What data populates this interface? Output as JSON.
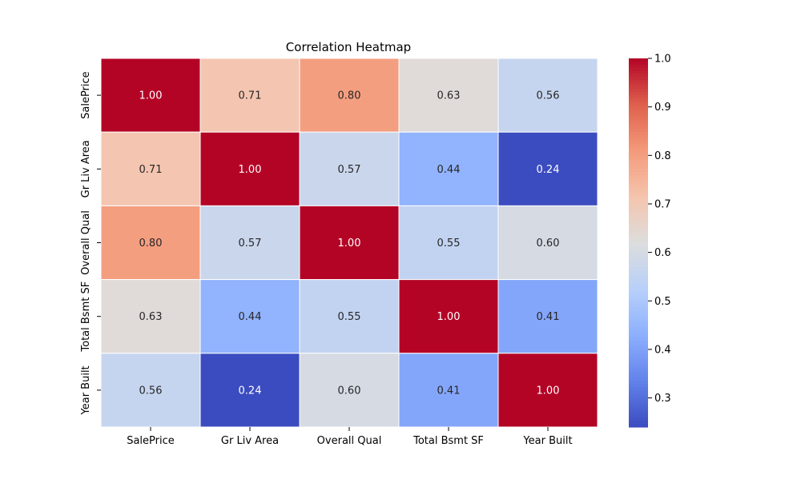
{
  "chart_data": {
    "type": "heatmap",
    "title": "Correlation Heatmap",
    "xlabel": "",
    "ylabel": "",
    "x_categories": [
      "SalePrice",
      "Gr Liv Area",
      "Overall Qual",
      "Total Bsmt SF",
      "Year Built"
    ],
    "y_categories": [
      "SalePrice",
      "Gr Liv Area",
      "Overall Qual",
      "Total Bsmt SF",
      "Year Built"
    ],
    "values": [
      [
        1.0,
        0.71,
        0.8,
        0.63,
        0.56
      ],
      [
        0.71,
        1.0,
        0.57,
        0.44,
        0.24
      ],
      [
        0.8,
        0.57,
        1.0,
        0.55,
        0.6
      ],
      [
        0.63,
        0.44,
        0.55,
        1.0,
        0.41
      ],
      [
        0.56,
        0.24,
        0.6,
        0.41,
        1.0
      ]
    ],
    "value_format": "0.00",
    "colormap": "coolwarm",
    "colors": {
      "low": "#3b4cc0",
      "mid": "#dddddd",
      "high": "#b40426",
      "grid_line": "#ffffff"
    },
    "color_range": [
      0.24,
      1.0
    ],
    "colorbar_ticks": [
      "0.3",
      "0.4",
      "0.5",
      "0.6",
      "0.7",
      "0.8",
      "0.9",
      "1.0"
    ],
    "colorbar_tick_values": [
      0.3,
      0.4,
      0.5,
      0.6,
      0.7,
      0.8,
      0.9,
      1.0
    ],
    "annotations": true,
    "legend": "colorbar-right"
  }
}
